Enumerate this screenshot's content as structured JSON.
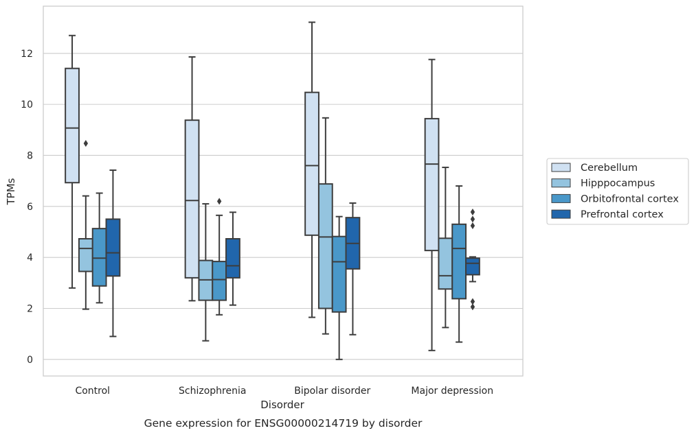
{
  "chart_data": {
    "type": "boxplot",
    "caption": "Gene expression for ENSG00000214719 by disorder",
    "xlabel": "Disorder",
    "ylabel": "TPMs",
    "ylim": [
      -0.65,
      13.85
    ],
    "yticks": [
      0,
      2,
      4,
      6,
      8,
      10,
      12
    ],
    "grid": "horizontal",
    "legend_position": "right",
    "categories": [
      "Control",
      "Schizophrenia",
      "Bipolar disorder",
      "Major depression"
    ],
    "series": [
      {
        "name": "Cerebellum",
        "color": "#d0e1f2",
        "boxes": [
          {
            "whisker_low": 2.8,
            "q1": 6.93,
            "median": 9.07,
            "q3": 11.41,
            "whisker_high": 12.7,
            "outliers": []
          },
          {
            "whisker_low": 2.3,
            "q1": 3.2,
            "median": 6.23,
            "q3": 9.38,
            "whisker_high": 11.86,
            "outliers": []
          },
          {
            "whisker_low": 1.65,
            "q1": 4.87,
            "median": 7.6,
            "q3": 10.47,
            "whisker_high": 13.22,
            "outliers": []
          },
          {
            "whisker_low": 0.35,
            "q1": 4.27,
            "median": 7.66,
            "q3": 9.44,
            "whisker_high": 11.76,
            "outliers": []
          }
        ]
      },
      {
        "name": "Hipppocampus",
        "color": "#94c4df",
        "boxes": [
          {
            "whisker_low": 1.97,
            "q1": 3.45,
            "median": 4.35,
            "q3": 4.73,
            "whisker_high": 6.41,
            "outliers": [
              8.47
            ]
          },
          {
            "whisker_low": 0.73,
            "q1": 2.32,
            "median": 3.12,
            "q3": 3.88,
            "whisker_high": 6.1,
            "outliers": []
          },
          {
            "whisker_low": 1.0,
            "q1": 2.0,
            "median": 4.8,
            "q3": 6.88,
            "whisker_high": 9.47,
            "outliers": []
          },
          {
            "whisker_low": 1.25,
            "q1": 2.76,
            "median": 3.28,
            "q3": 4.75,
            "whisker_high": 7.53,
            "outliers": []
          }
        ]
      },
      {
        "name": "Orbitofrontal cortex",
        "color": "#4a98c9",
        "boxes": [
          {
            "whisker_low": 2.22,
            "q1": 2.88,
            "median": 3.97,
            "q3": 5.13,
            "whisker_high": 6.52,
            "outliers": []
          },
          {
            "whisker_low": 1.75,
            "q1": 2.32,
            "median": 3.13,
            "q3": 3.84,
            "whisker_high": 5.65,
            "outliers": [
              6.2
            ]
          },
          {
            "whisker_low": 0.0,
            "q1": 1.86,
            "median": 3.83,
            "q3": 4.82,
            "whisker_high": 5.6,
            "outliers": []
          },
          {
            "whisker_low": 0.68,
            "q1": 2.38,
            "median": 4.35,
            "q3": 5.3,
            "whisker_high": 6.8,
            "outliers": []
          }
        ]
      },
      {
        "name": "Prefrontal cortex",
        "color": "#2166ac",
        "boxes": [
          {
            "whisker_low": 0.9,
            "q1": 3.27,
            "median": 4.18,
            "q3": 5.5,
            "whisker_high": 7.42,
            "outliers": []
          },
          {
            "whisker_low": 2.13,
            "q1": 3.2,
            "median": 3.67,
            "q3": 4.73,
            "whisker_high": 5.77,
            "outliers": []
          },
          {
            "whisker_low": 0.97,
            "q1": 3.55,
            "median": 4.55,
            "q3": 5.56,
            "whisker_high": 6.13,
            "outliers": []
          },
          {
            "whisker_low": 3.05,
            "q1": 3.32,
            "median": 3.77,
            "q3": 3.97,
            "whisker_high": 4.02,
            "outliers": [
              5.78,
              5.5,
              5.24,
              2.27,
              2.06
            ]
          }
        ]
      }
    ]
  }
}
